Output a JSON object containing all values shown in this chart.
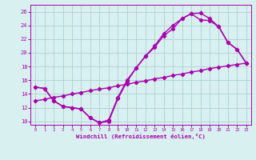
{
  "line1_x": [
    0,
    1,
    2,
    3,
    4,
    5,
    6,
    7,
    8,
    9,
    10,
    11,
    12,
    13,
    14,
    15,
    16,
    17,
    18,
    19,
    20,
    21,
    22,
    23
  ],
  "line1_y": [
    15.0,
    14.8,
    13.0,
    12.2,
    12.0,
    11.8,
    10.5,
    9.8,
    10.0,
    13.3,
    15.8,
    17.8,
    19.5,
    20.8,
    22.5,
    23.5,
    25.0,
    25.7,
    25.8,
    25.0,
    23.8,
    21.5,
    20.5,
    18.5
  ],
  "line2_x": [
    0,
    1,
    2,
    3,
    4,
    5,
    6,
    7,
    8,
    9,
    10,
    11,
    12,
    13,
    14,
    15,
    16,
    17,
    18,
    19,
    20,
    21,
    22,
    23
  ],
  "line2_y": [
    15.0,
    14.8,
    13.0,
    12.2,
    12.0,
    11.8,
    10.5,
    9.8,
    10.2,
    13.5,
    16.0,
    17.8,
    19.5,
    21.0,
    22.8,
    24.0,
    25.0,
    25.7,
    24.8,
    24.7,
    23.8,
    21.5,
    20.5,
    18.5
  ],
  "line3_x": [
    0,
    1,
    2,
    3,
    4,
    5,
    6,
    7,
    8,
    9,
    10,
    11,
    12,
    13,
    14,
    15,
    16,
    17,
    18,
    19,
    20,
    21,
    22,
    23
  ],
  "line3_y": [
    13.0,
    13.2,
    13.5,
    13.7,
    14.0,
    14.2,
    14.5,
    14.7,
    14.9,
    15.2,
    15.4,
    15.7,
    15.9,
    16.2,
    16.4,
    16.7,
    16.9,
    17.2,
    17.4,
    17.7,
    17.9,
    18.1,
    18.3,
    18.5
  ],
  "color": "#aa00aa",
  "bg_color": "#d8f0f0",
  "grid_color": "#b0d0d0",
  "xlabel": "Windchill (Refroidissement éolien,°C)",
  "xlim": [
    -0.5,
    23.5
  ],
  "ylim": [
    9.5,
    27.0
  ],
  "xticks": [
    0,
    1,
    2,
    3,
    4,
    5,
    6,
    7,
    8,
    9,
    10,
    11,
    12,
    13,
    14,
    15,
    16,
    17,
    18,
    19,
    20,
    21,
    22,
    23
  ],
  "yticks": [
    10,
    12,
    14,
    16,
    18,
    20,
    22,
    24,
    26
  ],
  "marker": "D",
  "markersize": 2.2,
  "linewidth": 1.0
}
